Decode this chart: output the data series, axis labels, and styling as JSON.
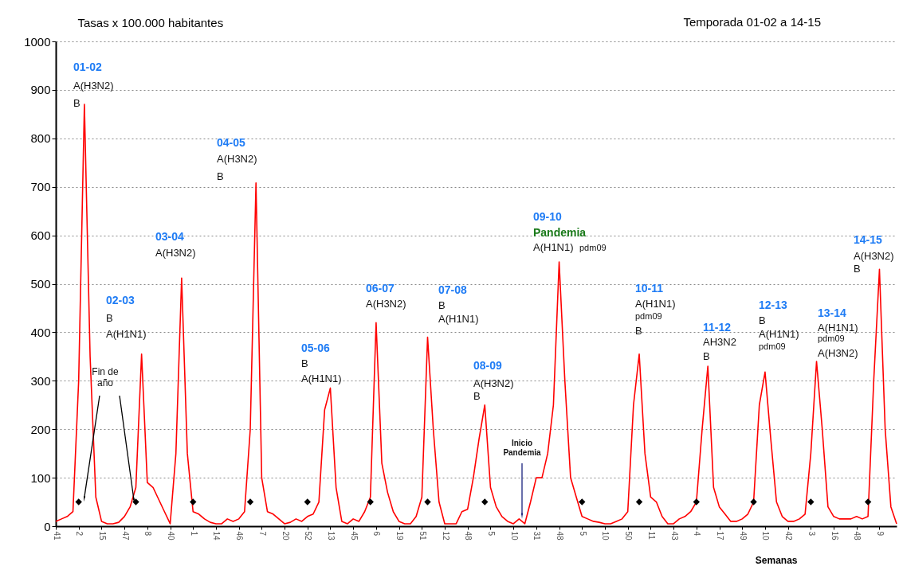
{
  "chart_data": {
    "type": "line",
    "title": "Temporada 01-02 a 14-15",
    "ylabel": "Tasas  x 100.000 habitantes",
    "xlabel": "Semanas",
    "categories": [
      "41",
      null,
      null,
      null,
      "2",
      null,
      null,
      null,
      "15",
      null,
      null,
      null,
      "47",
      null,
      null,
      null,
      "8",
      null,
      null,
      null,
      "40",
      null,
      null,
      null,
      "1",
      null,
      null,
      null,
      "14",
      null,
      null,
      null,
      "46",
      null,
      null,
      null,
      "7",
      null,
      null,
      null,
      "20",
      null,
      null,
      null,
      "52",
      null,
      null,
      null,
      "13",
      null,
      null,
      null,
      "45",
      null,
      null,
      null,
      "6",
      null,
      null,
      null,
      "19",
      null,
      null,
      null,
      "51",
      null,
      null,
      null,
      "12",
      null,
      null,
      null,
      "48",
      null,
      null,
      null,
      "5",
      null,
      null,
      null,
      "10",
      null,
      null,
      null,
      "31",
      null,
      null,
      null,
      "48",
      null,
      null,
      null,
      "5",
      null,
      null,
      null,
      "10",
      null,
      null,
      null,
      "50",
      null,
      null,
      null,
      "11",
      null,
      null,
      null,
      "43",
      null,
      null,
      null,
      "4",
      null,
      null,
      null,
      "17",
      null,
      null,
      null,
      "49",
      null,
      null,
      null,
      "10",
      null,
      null,
      null,
      "42",
      null,
      null,
      null,
      "3",
      null,
      null,
      null,
      "16",
      null,
      null,
      null,
      "48",
      null,
      null,
      null,
      "9",
      null,
      null,
      null
    ],
    "series": [
      {
        "color": "#ff0000",
        "marker": "none",
        "values": [
          10,
          15,
          20,
          30,
          300,
          870,
          350,
          60,
          10,
          5,
          5,
          8,
          20,
          40,
          80,
          355,
          90,
          80,
          55,
          30,
          5,
          150,
          512,
          150,
          30,
          25,
          15,
          8,
          5,
          5,
          15,
          10,
          15,
          30,
          200,
          708,
          100,
          30,
          25,
          15,
          5,
          8,
          15,
          10,
          20,
          25,
          50,
          240,
          285,
          80,
          10,
          5,
          15,
          10,
          30,
          60,
          420,
          130,
          70,
          30,
          10,
          5,
          5,
          20,
          60,
          390,
          200,
          50,
          5,
          5,
          5,
          30,
          35,
          100,
          180,
          250,
          80,
          40,
          20,
          10,
          5,
          15,
          5,
          50,
          100,
          100,
          150,
          250,
          545,
          300,
          100,
          60,
          20,
          15,
          10,
          8,
          5,
          5,
          10,
          15,
          30,
          250,
          355,
          150,
          60,
          50,
          20,
          5,
          5,
          15,
          20,
          30,
          50,
          200,
          330,
          80,
          40,
          25,
          10,
          10,
          15,
          25,
          50,
          250,
          318,
          180,
          50,
          20,
          10,
          10,
          15,
          25,
          150,
          340,
          200,
          40,
          20,
          15,
          15,
          15,
          20,
          15,
          20,
          300,
          530,
          200,
          40,
          5
        ]
      },
      {
        "color": "#000000",
        "type": "scatter",
        "marker": "diamond",
        "values": [
          null,
          null,
          null,
          null,
          50,
          null,
          null,
          null,
          null,
          null,
          null,
          null,
          null,
          null,
          50,
          null,
          null,
          null,
          null,
          null,
          null,
          null,
          null,
          null,
          50,
          null,
          null,
          null,
          null,
          null,
          null,
          null,
          null,
          null,
          50,
          null,
          null,
          null,
          null,
          null,
          null,
          null,
          null,
          null,
          50,
          null,
          null,
          null,
          null,
          null,
          null,
          null,
          null,
          null,
          null,
          50,
          null,
          null,
          null,
          null,
          null,
          null,
          null,
          null,
          null,
          50,
          null,
          null,
          null,
          null,
          null,
          null,
          null,
          null,
          null,
          50,
          null,
          null,
          null,
          null,
          null,
          null,
          null,
          null,
          null,
          null,
          null,
          null,
          null,
          null,
          null,
          null,
          50,
          null,
          null,
          null,
          null,
          null,
          null,
          null,
          null,
          null,
          50,
          null,
          null,
          null,
          null,
          null,
          null,
          null,
          null,
          null,
          50,
          null,
          null,
          null,
          null,
          null,
          null,
          null,
          null,
          null,
          50,
          null,
          null,
          null,
          null,
          null,
          null,
          null,
          null,
          null,
          50,
          null,
          null,
          null,
          null,
          null,
          null,
          null,
          null,
          null,
          50,
          null,
          null,
          null,
          null,
          null
        ]
      }
    ],
    "ylim": [
      0,
      1000
    ],
    "yticks": [
      0,
      100,
      200,
      300,
      400,
      500,
      600,
      700,
      800,
      900,
      1000
    ],
    "grid": "y",
    "annotations": [
      "01-02",
      "A(H3N2)",
      "B",
      "02-03",
      "B",
      "A(H1N1)",
      "03-04",
      "A(H3N2)",
      "04-05",
      "A(H3N2)",
      "B",
      "05-06",
      "B",
      "A(H1N1)",
      "06-07",
      "A(H3N2)",
      "07-08",
      "B",
      "A(H1N1)",
      "08-09",
      "A(H3N2)",
      "B",
      "09-10",
      "Pandemia",
      "A(H1N1)",
      "pdm09",
      "10-11",
      "A(H1N1)",
      "pdm09",
      "B",
      "11-12",
      "AH3N2",
      "B",
      "12-13",
      "B",
      "A(H1N1)",
      "pdm09",
      "13-14",
      "A(H1N1)",
      "pdm09",
      "A(H3N2)",
      "14-15",
      "A(H3N2)",
      "B",
      {
        "text": "Fin de\naño",
        "x": "2",
        "y": 50
      },
      {
        "text": "Inicio\nPandemia",
        "y": 10
      }
    ]
  }
}
